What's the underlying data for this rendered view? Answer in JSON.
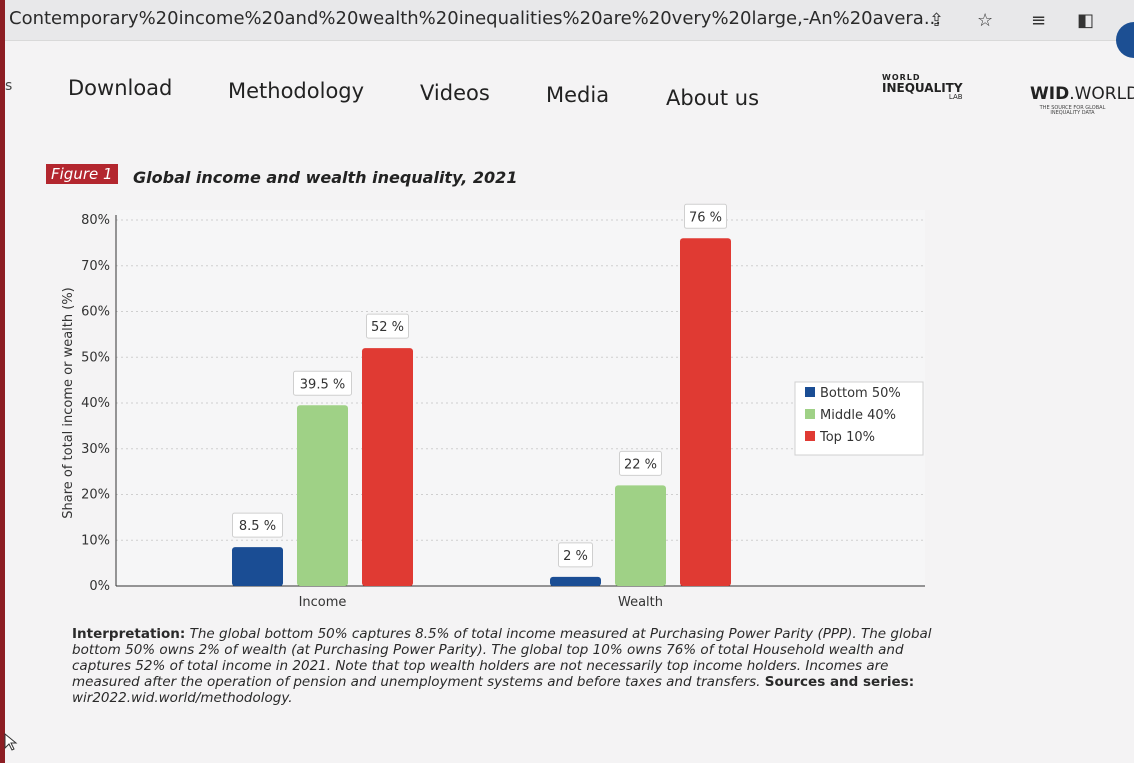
{
  "browser": {
    "tab_url": "Contemporary%20income%20and%20wealth%20inequalities%20are%20very%20large,-An%20avera..."
  },
  "nav": {
    "items": [
      "Download",
      "Methodology",
      "Videos",
      "Media",
      "About us"
    ],
    "left_glyph": "s"
  },
  "logos": {
    "wil_line1": "WORLD",
    "wil_line2": "INEQUALITY",
    "wil_line3": "LAB",
    "wid_main": "WID",
    "wid_suffix": ".WORLD",
    "wid_tagline": "THE SOURCE FOR GLOBAL INEQUALITY DATA"
  },
  "figure": {
    "badge": "Figure 1",
    "title": "Global income and wealth inequality, 2021"
  },
  "colors": {
    "bottom": "#1a4d94",
    "middle": "#9fd186",
    "top": "#e03a33",
    "accent": "#b3262e"
  },
  "chart_data": {
    "type": "bar",
    "categories": [
      "Income",
      "Wealth"
    ],
    "series": [
      {
        "name": "Bottom 50%",
        "values": [
          8.5,
          2
        ],
        "labels": [
          "8.5 %",
          "2 %"
        ]
      },
      {
        "name": "Middle 40%",
        "values": [
          39.5,
          22
        ],
        "labels": [
          "39.5 %",
          "22 %"
        ]
      },
      {
        "name": "Top 10%",
        "values": [
          52,
          76
        ],
        "labels": [
          "52 %",
          "76 %"
        ]
      }
    ],
    "ylabel": "Share of total income or wealth (%)",
    "yticks": [
      "0%",
      "10%",
      "20%",
      "30%",
      "40%",
      "50%",
      "60%",
      "70%",
      "80%"
    ],
    "ylim": [
      0,
      80
    ],
    "grid": true,
    "legend": "right"
  },
  "interpretation": {
    "label": "Interpretation:",
    "text": "The global bottom 50% captures 8.5% of total income measured at Purchasing Power Parity (PPP). The global bottom 50% owns 2% of wealth (at Purchasing Power Parity). The global top 10% owns 76% of total Household wealth and captures 52% of total income in 2021. Note that top wealth holders are not necessarily top income holders. Incomes are measured after the operation of pension and unemployment systems and before taxes and transfers.",
    "sources_label": "Sources and series:",
    "sources_text": "wir2022.wid.world/methodology."
  }
}
